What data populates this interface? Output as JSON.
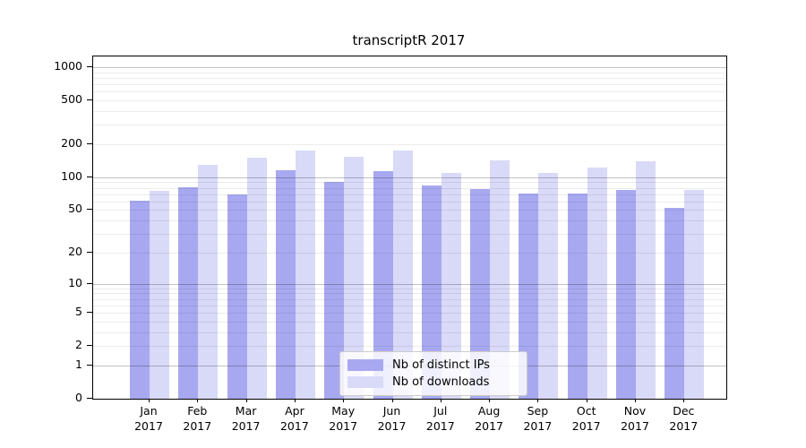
{
  "title": "transcriptR 2017",
  "chart_data": {
    "type": "bar",
    "title": "transcriptR 2017",
    "xlabel": "",
    "ylabel": "",
    "categories": [
      "Jan",
      "Feb",
      "Mar",
      "Apr",
      "May",
      "Jun",
      "Jul",
      "Aug",
      "Sep",
      "Oct",
      "Nov",
      "Dec"
    ],
    "year_label": "2017",
    "series": [
      {
        "name": "Nb of distinct IPs",
        "color": "#a8a8f0",
        "values": [
          61,
          81,
          69,
          115,
          91,
          114,
          84,
          78,
          71,
          71,
          76,
          52
        ]
      },
      {
        "name": "Nb of downloads",
        "color": "#d9d9f8",
        "values": [
          75,
          129,
          151,
          174,
          153,
          176,
          110,
          142,
          110,
          123,
          140,
          76
        ]
      }
    ],
    "y_axis": {
      "scale": "log1p",
      "tick_values": [
        0,
        1,
        2,
        5,
        10,
        20,
        50,
        100,
        200,
        500,
        1000
      ],
      "tick_labels": [
        "0",
        "1",
        "2",
        "5",
        "10",
        "20",
        "50",
        "100",
        "200",
        "500",
        "1000"
      ],
      "major_gridlines": [
        1,
        10,
        100,
        1000
      ],
      "minor_gridlines": [
        2,
        3,
        4,
        5,
        6,
        7,
        8,
        9,
        20,
        30,
        40,
        50,
        60,
        70,
        80,
        90,
        200,
        300,
        400,
        500,
        600,
        700,
        800,
        900
      ],
      "ylim": [
        0,
        1250
      ]
    },
    "grid": true,
    "legend_position": "lower center"
  },
  "legend": {
    "items": [
      {
        "label": "Nb of distinct IPs"
      },
      {
        "label": "Nb of downloads"
      }
    ]
  }
}
